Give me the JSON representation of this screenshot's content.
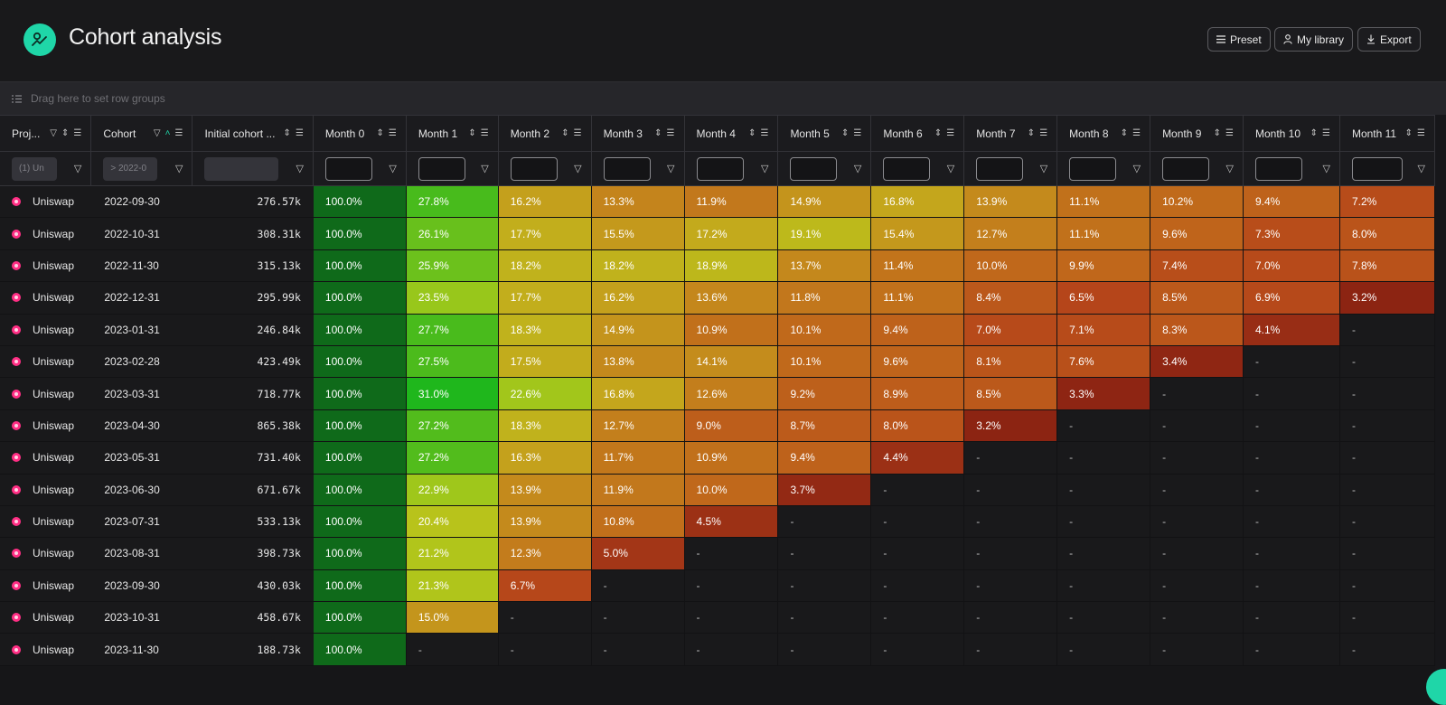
{
  "header": {
    "title": "Cohort analysis",
    "buttons": {
      "preset": "Preset",
      "library": "My library",
      "export": "Export"
    }
  },
  "group_bar": {
    "placeholder": "Drag here to set row groups"
  },
  "columns": {
    "project": "Proj...",
    "cohort": "Cohort",
    "initial": "Initial cohort ...",
    "months": [
      "Month 0",
      "Month 1",
      "Month 2",
      "Month 3",
      "Month 4",
      "Month 5",
      "Month 6",
      "Month 7",
      "Month 8",
      "Month 9",
      "Month 10",
      "Month 11"
    ]
  },
  "filters": {
    "project": "(1) Un",
    "cohort": "> 2022-0"
  },
  "rows": [
    {
      "project": "Uniswap",
      "cohort": "2022-09-30",
      "initial": "276.57k",
      "values": [
        "100.0%",
        "27.8%",
        "16.2%",
        "13.3%",
        "11.9%",
        "14.9%",
        "16.8%",
        "13.9%",
        "11.1%",
        "10.2%",
        "9.4%",
        "7.2%"
      ]
    },
    {
      "project": "Uniswap",
      "cohort": "2022-10-31",
      "initial": "308.31k",
      "values": [
        "100.0%",
        "26.1%",
        "17.7%",
        "15.5%",
        "17.2%",
        "19.1%",
        "15.4%",
        "12.7%",
        "11.1%",
        "9.6%",
        "7.3%",
        "8.0%"
      ]
    },
    {
      "project": "Uniswap",
      "cohort": "2022-11-30",
      "initial": "315.13k",
      "values": [
        "100.0%",
        "25.9%",
        "18.2%",
        "18.2%",
        "18.9%",
        "13.7%",
        "11.4%",
        "10.0%",
        "9.9%",
        "7.4%",
        "7.0%",
        "7.8%"
      ]
    },
    {
      "project": "Uniswap",
      "cohort": "2022-12-31",
      "initial": "295.99k",
      "values": [
        "100.0%",
        "23.5%",
        "17.7%",
        "16.2%",
        "13.6%",
        "11.8%",
        "11.1%",
        "8.4%",
        "6.5%",
        "8.5%",
        "6.9%",
        "3.2%"
      ]
    },
    {
      "project": "Uniswap",
      "cohort": "2023-01-31",
      "initial": "246.84k",
      "values": [
        "100.0%",
        "27.7%",
        "18.3%",
        "14.9%",
        "10.9%",
        "10.1%",
        "9.4%",
        "7.0%",
        "7.1%",
        "8.3%",
        "4.1%",
        "-"
      ]
    },
    {
      "project": "Uniswap",
      "cohort": "2023-02-28",
      "initial": "423.49k",
      "values": [
        "100.0%",
        "27.5%",
        "17.5%",
        "13.8%",
        "14.1%",
        "10.1%",
        "9.6%",
        "8.1%",
        "7.6%",
        "3.4%",
        "-",
        "-"
      ]
    },
    {
      "project": "Uniswap",
      "cohort": "2023-03-31",
      "initial": "718.77k",
      "values": [
        "100.0%",
        "31.0%",
        "22.6%",
        "16.8%",
        "12.6%",
        "9.2%",
        "8.9%",
        "8.5%",
        "3.3%",
        "-",
        "-",
        "-"
      ]
    },
    {
      "project": "Uniswap",
      "cohort": "2023-04-30",
      "initial": "865.38k",
      "values": [
        "100.0%",
        "27.2%",
        "18.3%",
        "12.7%",
        "9.0%",
        "8.7%",
        "8.0%",
        "3.2%",
        "-",
        "-",
        "-",
        "-"
      ]
    },
    {
      "project": "Uniswap",
      "cohort": "2023-05-31",
      "initial": "731.40k",
      "values": [
        "100.0%",
        "27.2%",
        "16.3%",
        "11.7%",
        "10.9%",
        "9.4%",
        "4.4%",
        "-",
        "-",
        "-",
        "-",
        "-"
      ]
    },
    {
      "project": "Uniswap",
      "cohort": "2023-06-30",
      "initial": "671.67k",
      "values": [
        "100.0%",
        "22.9%",
        "13.9%",
        "11.9%",
        "10.0%",
        "3.7%",
        "-",
        "-",
        "-",
        "-",
        "-",
        "-"
      ]
    },
    {
      "project": "Uniswap",
      "cohort": "2023-07-31",
      "initial": "533.13k",
      "values": [
        "100.0%",
        "20.4%",
        "13.9%",
        "10.8%",
        "4.5%",
        "-",
        "-",
        "-",
        "-",
        "-",
        "-",
        "-"
      ]
    },
    {
      "project": "Uniswap",
      "cohort": "2023-08-31",
      "initial": "398.73k",
      "values": [
        "100.0%",
        "21.2%",
        "12.3%",
        "5.0%",
        "-",
        "-",
        "-",
        "-",
        "-",
        "-",
        "-",
        "-"
      ]
    },
    {
      "project": "Uniswap",
      "cohort": "2023-09-30",
      "initial": "430.03k",
      "values": [
        "100.0%",
        "21.3%",
        "6.7%",
        "-",
        "-",
        "-",
        "-",
        "-",
        "-",
        "-",
        "-",
        "-"
      ]
    },
    {
      "project": "Uniswap",
      "cohort": "2023-10-31",
      "initial": "458.67k",
      "values": [
        "100.0%",
        "15.0%",
        "-",
        "-",
        "-",
        "-",
        "-",
        "-",
        "-",
        "-",
        "-",
        "-"
      ]
    },
    {
      "project": "Uniswap",
      "cohort": "2023-11-30",
      "initial": "188.73k",
      "values": [
        "100.0%",
        "-",
        "-",
        "-",
        "-",
        "-",
        "-",
        "-",
        "-",
        "-",
        "-",
        "-"
      ]
    }
  ],
  "colors": {
    "brand": "#1fd6a8",
    "month0": "#0f6a1a",
    "empty": "#19191b",
    "scale": [
      "#8a2212",
      "#b5451a",
      "#c0681b",
      "#c4861c",
      "#c4a81c",
      "#b8c41b",
      "#93c81b",
      "#4cbb1c",
      "#1fb71c"
    ]
  }
}
